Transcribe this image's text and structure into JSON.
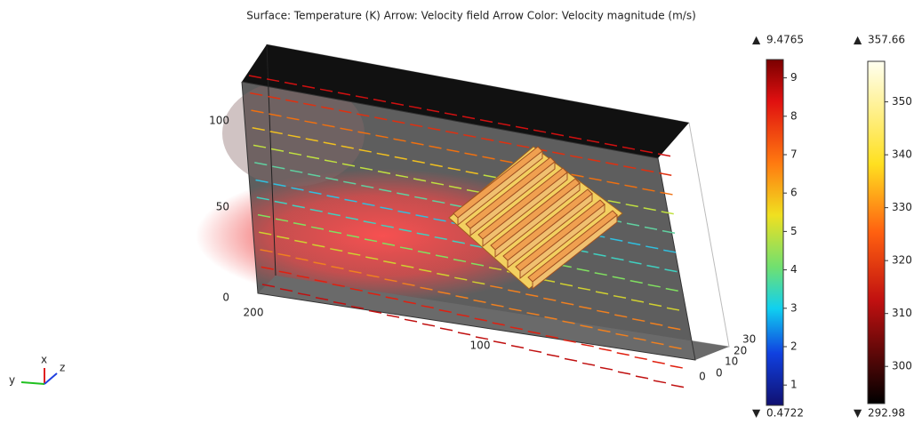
{
  "title": "Surface: Temperature (K) Arrow: Velocity field   Arrow Color: Velocity magnitude (m/s)",
  "velocity_legend": {
    "max": 9.4765,
    "min": 0.4722,
    "ticks": [
      1,
      2,
      3,
      4,
      5,
      6,
      7,
      8,
      9
    ]
  },
  "temperature_legend": {
    "max": 357.66,
    "min": 292.98,
    "ticks": [
      300,
      310,
      320,
      330,
      340,
      350
    ]
  },
  "axes": {
    "vertical_ticks": [
      0,
      50,
      100
    ],
    "length_ticks": [
      200,
      100,
      0
    ],
    "depth_ticks": [
      0,
      10,
      20,
      30
    ]
  },
  "triad": {
    "x": "x",
    "y": "y",
    "z": "z"
  }
}
